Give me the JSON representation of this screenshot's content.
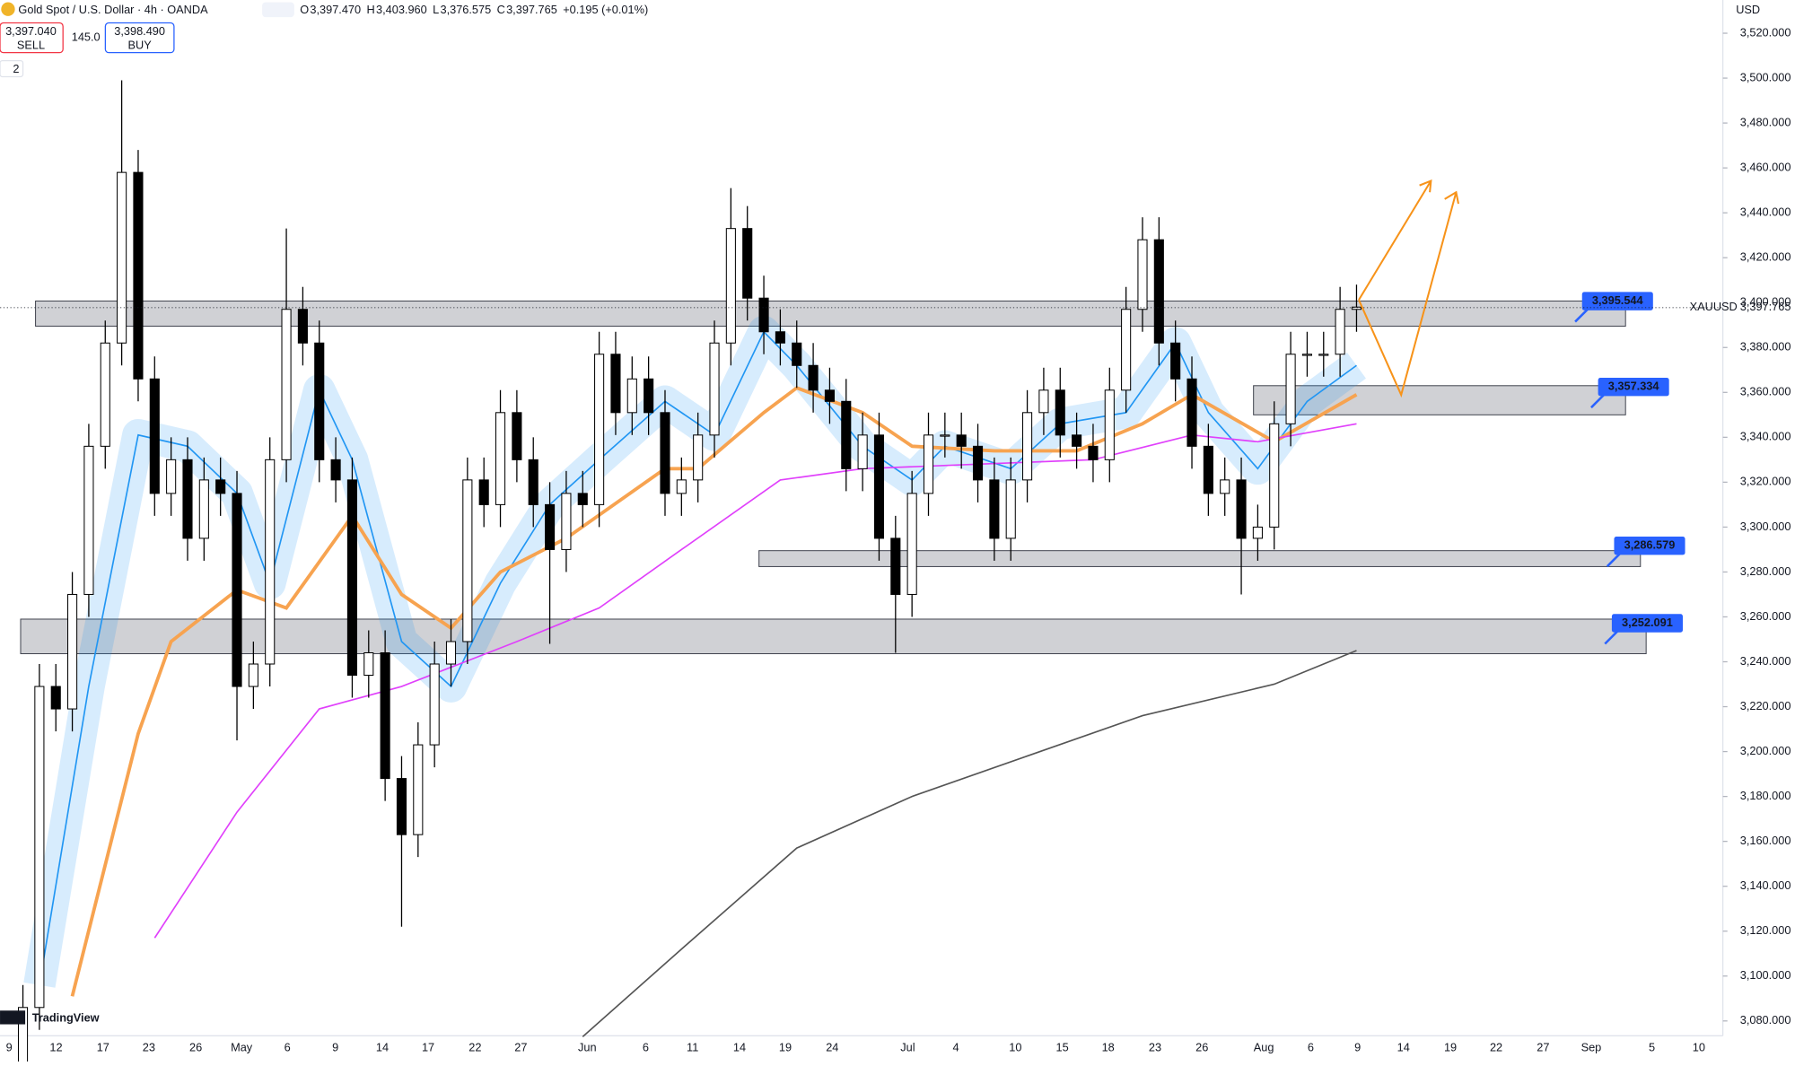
{
  "header": {
    "symbol": "Gold Spot / U.S. Dollar · 4h · OANDA",
    "ohlc": [
      {
        "label": "O",
        "value": "3,397.470"
      },
      {
        "label": "H",
        "value": "3,403.960"
      },
      {
        "label": "L",
        "value": "3,376.575"
      },
      {
        "label": "C",
        "value": "3,397.765"
      }
    ],
    "change": "+0.195 (+0.01%)",
    "sell": {
      "price": "3,397.040",
      "label": "SELL"
    },
    "spread": "145.0",
    "buy": {
      "price": "3,398.490",
      "label": "BUY"
    },
    "indicators": "2",
    "currency": "USD",
    "logo": "TradingView"
  },
  "chart_data": {
    "type": "candlestick",
    "symbol": "XAUUSD",
    "last_price": 3397.765,
    "last_price_label": "3,397.765",
    "up_color": "#ffffff",
    "down_color": "#000000",
    "open": [
      3060,
      3086,
      3229,
      3219,
      3270,
      3336,
      3382,
      3458,
      3366,
      3315,
      3330,
      3295,
      3321,
      3315,
      3229,
      3239,
      3330,
      3397,
      3382,
      3330,
      3321,
      3234,
      3244,
      3188,
      3163,
      3203,
      3239,
      3249,
      3321,
      3310,
      3351,
      3330,
      3310,
      3290,
      3315,
      3310,
      3377,
      3351,
      3366,
      3351,
      3315,
      3321,
      3341,
      3382,
      3433,
      3402,
      3387,
      3382,
      3372,
      3361,
      3356,
      3326,
      3341,
      3295,
      3270,
      3315,
      3341,
      3341,
      3336,
      3321,
      3295,
      3321,
      3351,
      3361,
      3341,
      3336,
      3330,
      3361,
      3397,
      3428,
      3382,
      3366,
      3336,
      3315,
      3321,
      3295,
      3300,
      3346,
      3377,
      3377,
      3377,
      3397
    ],
    "high": [
      3096,
      3239,
      3239,
      3280,
      3346,
      3392,
      3499,
      3468,
      3376,
      3340,
      3340,
      3331,
      3331,
      3325,
      3249,
      3340,
      3433,
      3407,
      3392,
      3340,
      3331,
      3254,
      3254,
      3198,
      3213,
      3249,
      3259,
      3331,
      3331,
      3361,
      3361,
      3340,
      3320,
      3325,
      3325,
      3387,
      3387,
      3376,
      3376,
      3361,
      3331,
      3351,
      3392,
      3451,
      3443,
      3412,
      3397,
      3392,
      3382,
      3371,
      3366,
      3351,
      3351,
      3305,
      3325,
      3351,
      3351,
      3351,
      3346,
      3331,
      3331,
      3361,
      3371,
      3371,
      3351,
      3346,
      3371,
      3407,
      3438,
      3438,
      3392,
      3376,
      3346,
      3331,
      3331,
      3310,
      3356,
      3387,
      3387,
      3387,
      3407,
      3408
    ],
    "low": [
      3050,
      3076,
      3209,
      3209,
      3260,
      3326,
      3372,
      3356,
      3305,
      3305,
      3285,
      3285,
      3305,
      3205,
      3219,
      3229,
      3320,
      3372,
      3320,
      3311,
      3224,
      3224,
      3178,
      3122,
      3153,
      3193,
      3229,
      3239,
      3300,
      3300,
      3320,
      3300,
      3248,
      3280,
      3300,
      3300,
      3341,
      3341,
      3341,
      3305,
      3305,
      3311,
      3331,
      3372,
      3392,
      3377,
      3372,
      3362,
      3351,
      3346,
      3316,
      3316,
      3285,
      3244,
      3260,
      3305,
      3331,
      3326,
      3311,
      3285,
      3285,
      3311,
      3341,
      3331,
      3326,
      3320,
      3320,
      3351,
      3387,
      3372,
      3356,
      3326,
      3305,
      3305,
      3270,
      3285,
      3290,
      3336,
      3367,
      3367,
      3367,
      3387
    ],
    "close": [
      3086,
      3229,
      3219,
      3270,
      3336,
      3382,
      3458,
      3366,
      3315,
      3330,
      3295,
      3321,
      3315,
      3229,
      3239,
      3330,
      3397,
      3382,
      3330,
      3321,
      3234,
      3244,
      3188,
      3163,
      3203,
      3239,
      3249,
      3321,
      3310,
      3351,
      3330,
      3310,
      3290,
      3315,
      3310,
      3377,
      3351,
      3366,
      3351,
      3315,
      3321,
      3341,
      3382,
      3433,
      3402,
      3387,
      3382,
      3372,
      3361,
      3356,
      3326,
      3341,
      3295,
      3270,
      3315,
      3341,
      3341,
      3336,
      3321,
      3295,
      3321,
      3351,
      3361,
      3341,
      3336,
      3330,
      3361,
      3397,
      3428,
      3382,
      3366,
      3336,
      3315,
      3321,
      3295,
      3300,
      3346,
      3377,
      3377,
      3377,
      3397,
      3398
    ],
    "ylim": [
      3073.4,
      3534.8
    ],
    "yticks": [
      {
        "value": 3080,
        "label": "3,080.000"
      },
      {
        "value": 3100,
        "label": "3,100.000"
      },
      {
        "value": 3120,
        "label": "3,120.000"
      },
      {
        "value": 3140,
        "label": "3,140.000"
      },
      {
        "value": 3160,
        "label": "3,160.000"
      },
      {
        "value": 3180,
        "label": "3,180.000"
      },
      {
        "value": 3200,
        "label": "3,200.000"
      },
      {
        "value": 3220,
        "label": "3,220.000"
      },
      {
        "value": 3240,
        "label": "3,240.000"
      },
      {
        "value": 3260,
        "label": "3,260.000"
      },
      {
        "value": 3280,
        "label": "3,280.000"
      },
      {
        "value": 3300,
        "label": "3,300.000"
      },
      {
        "value": 3320,
        "label": "3,320.000"
      },
      {
        "value": 3340,
        "label": "3,340.000"
      },
      {
        "value": 3360,
        "label": "3,360.000"
      },
      {
        "value": 3380,
        "label": "3,380.000"
      },
      {
        "value": 3400,
        "label": "3,400.000"
      },
      {
        "value": 3420,
        "label": "3,420.000"
      },
      {
        "value": 3440,
        "label": "3,440.000"
      },
      {
        "value": 3460,
        "label": "3,460.000"
      },
      {
        "value": 3480,
        "label": "3,480.000"
      },
      {
        "value": 3500,
        "label": "3,500.000"
      },
      {
        "value": 3520,
        "label": "3,520.000"
      }
    ],
    "xticks": [
      "9",
      "12",
      "17",
      "23",
      "26",
      "May",
      "6",
      "9",
      "14",
      "17",
      "22",
      "27",
      "Jun",
      "6",
      "11",
      "14",
      "19",
      "24",
      "Jul",
      "4",
      "10",
      "15",
      "18",
      "23",
      "26",
      "Aug",
      "6",
      "9",
      "14",
      "19",
      "22",
      "27",
      "Sep",
      "5",
      "10"
    ],
    "lines": [
      {
        "color": "#2196f3",
        "x": [
          1,
          4,
          7,
          10,
          13,
          15,
          18,
          20,
          23,
          26,
          29,
          32,
          35,
          39,
          42,
          45,
          47,
          51,
          54,
          56,
          60,
          63,
          67,
          70,
          72,
          75,
          78,
          81
        ],
        "values": [
          3096,
          3229,
          3341,
          3336,
          3315,
          3275,
          3361,
          3330,
          3249,
          3229,
          3275,
          3310,
          3330,
          3356,
          3341,
          3387,
          3372,
          3336,
          3321,
          3336,
          3326,
          3346,
          3351,
          3382,
          3351,
          3326,
          3356,
          3372
        ]
      },
      {
        "color": "#f7a350",
        "x": [
          3,
          7,
          9,
          13,
          16,
          20,
          23,
          26,
          29,
          33,
          39,
          41,
          45,
          47,
          51,
          54,
          59,
          64,
          68,
          71,
          76,
          81
        ],
        "values": [
          3091,
          3208,
          3249,
          3272,
          3264,
          3305,
          3270,
          3255,
          3280,
          3295,
          3326,
          3326,
          3351,
          3362,
          3351,
          3336,
          3334,
          3334,
          3346,
          3359,
          3338,
          3359
        ]
      },
      {
        "color": "#e040fb",
        "x": [
          8,
          13,
          18,
          23,
          30,
          35,
          40,
          46,
          51,
          58,
          65,
          71,
          75,
          81
        ],
        "values": [
          3117,
          3173,
          3219,
          3229,
          3249,
          3264,
          3290,
          3321,
          3326,
          3328,
          3330,
          3341,
          3338,
          3346
        ]
      },
      {
        "color": "#555555",
        "x": [
          34,
          40,
          47,
          54,
          61,
          68,
          76,
          81
        ],
        "values": [
          3073,
          3112,
          3157,
          3180,
          3198,
          3216,
          3230,
          3245
        ]
      }
    ],
    "zones": [
      {
        "top": 3400.7,
        "bottom": 3389.5,
        "level": 3395.544,
        "value_label": "3,395.544"
      },
      {
        "top": 3363,
        "bottom": 3350,
        "level": 3357.334,
        "value_label": "3,357.334"
      },
      {
        "top": 3289.5,
        "bottom": 3282.4,
        "level": 3286.579,
        "value_label": "3,286.579"
      },
      {
        "top": 3259,
        "bottom": 3243.6,
        "level": 3252.091,
        "value_label": "3,252.091"
      }
    ]
  }
}
